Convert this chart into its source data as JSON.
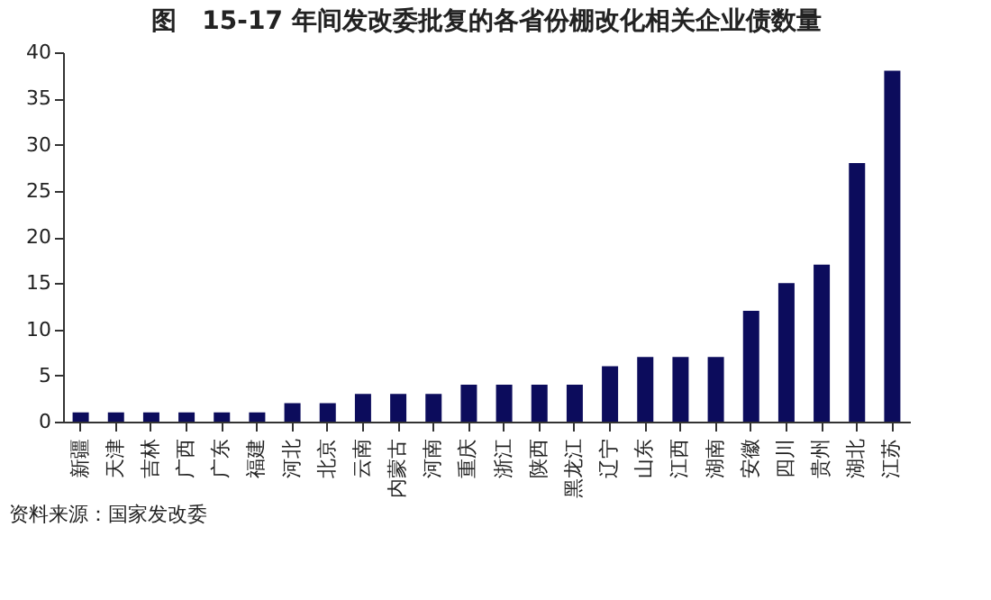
{
  "chart_data": {
    "type": "bar",
    "title": "图　15-17 年间发改委批复的各省份棚改化相关企业债数量",
    "categories": [
      "新疆",
      "天津",
      "吉林",
      "广西",
      "广东",
      "福建",
      "河北",
      "北京",
      "云南",
      "内蒙古",
      "河南",
      "重庆",
      "浙江",
      "陕西",
      "黑龙江",
      "辽宁",
      "山东",
      "江西",
      "湖南",
      "安徽",
      "四川",
      "贵州",
      "湖北",
      "江苏"
    ],
    "values": [
      1,
      1,
      1,
      1,
      1,
      1,
      2,
      2,
      3,
      3,
      3,
      4,
      4,
      4,
      4,
      6,
      7,
      7,
      7,
      12,
      15,
      17,
      28,
      38
    ],
    "color": "#0c0c5c",
    "ylim": [
      0,
      40
    ],
    "yticks": [
      0,
      5,
      10,
      15,
      20,
      25,
      30,
      35,
      40
    ],
    "grid": false,
    "annotations": [
      "资料来源：国家发改委"
    ]
  }
}
